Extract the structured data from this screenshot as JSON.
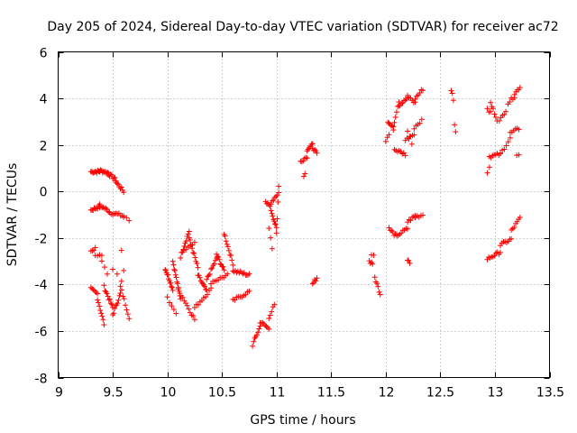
{
  "chart_data": {
    "type": "scatter",
    "title": "Day 205 of 2024, Sidereal Day-to-day VTEC variation (SDTVAR) for receiver ac72",
    "xlabel": "GPS time / hours",
    "ylabel": "SDTVAR / TECUs",
    "xlim": [
      9,
      13.5
    ],
    "ylim": [
      -8,
      6
    ],
    "xticks": [
      9,
      9.5,
      10,
      10.5,
      11,
      11.5,
      12,
      12.5,
      13,
      13.5
    ],
    "xtick_labels": [
      "9",
      "9.5",
      "10",
      "10.5",
      "11",
      "11.5",
      "12",
      "12.5",
      "13",
      "13.5"
    ],
    "yticks": [
      -8,
      -6,
      -4,
      -2,
      0,
      2,
      4,
      6
    ],
    "ytick_labels": [
      "-8",
      "-6",
      "-4",
      "-2",
      "0",
      "2",
      "4",
      "6"
    ],
    "grid": true,
    "marker": "+",
    "marker_color": "#ff0000",
    "series": [
      {
        "name": "SDTVAR",
        "segments": [
          {
            "x0": 9.3,
            "x1": 9.38,
            "y0": 0.85,
            "y1": 0.85,
            "n": 10
          },
          {
            "x0": 9.38,
            "x1": 9.46,
            "y0": 0.9,
            "y1": 0.8,
            "n": 10
          },
          {
            "x0": 9.46,
            "x1": 9.53,
            "y0": 0.75,
            "y1": 0.5,
            "n": 8
          },
          {
            "x0": 9.53,
            "x1": 9.6,
            "y0": 0.4,
            "y1": 0.0,
            "n": 8
          },
          {
            "x0": 9.3,
            "x1": 9.38,
            "y0": -0.8,
            "y1": -0.65,
            "n": 9
          },
          {
            "x0": 9.38,
            "x1": 9.47,
            "y0": -0.6,
            "y1": -0.85,
            "n": 9
          },
          {
            "x0": 9.47,
            "x1": 9.6,
            "y0": -0.9,
            "y1": -1.05,
            "n": 10
          },
          {
            "x0": 9.6,
            "x1": 9.65,
            "y0": -1.1,
            "y1": -1.25,
            "n": 3
          },
          {
            "x0": 9.3,
            "x1": 9.34,
            "y0": -2.55,
            "y1": -2.45,
            "n": 4
          },
          {
            "x0": 9.34,
            "x1": 9.4,
            "y0": -2.7,
            "y1": -2.8,
            "n": 4
          },
          {
            "x0": 9.3,
            "x1": 9.36,
            "y0": -4.2,
            "y1": -4.4,
            "n": 6
          },
          {
            "x0": 9.36,
            "x1": 9.42,
            "y0": -4.6,
            "y1": -5.7,
            "n": 8
          },
          {
            "x0": 9.42,
            "x1": 9.5,
            "y0": -4.1,
            "y1": -5.0,
            "n": 10
          },
          {
            "x0": 9.5,
            "x1": 9.57,
            "y0": -5.3,
            "y1": -4.4,
            "n": 9
          },
          {
            "x0": 9.57,
            "x1": 9.65,
            "y0": -4.1,
            "y1": -5.4,
            "n": 8
          },
          {
            "x0": 9.4,
            "x1": 9.45,
            "y0": -3.0,
            "y1": -3.6,
            "n": 3
          },
          {
            "x0": 9.5,
            "x1": 9.58,
            "y0": -3.3,
            "y1": -3.8,
            "n": 3
          },
          {
            "x0": 9.58,
            "x1": 9.6,
            "y0": -2.5,
            "y1": -3.4,
            "n": 2
          },
          {
            "x0": 9.98,
            "x1": 10.05,
            "y0": -3.3,
            "y1": -4.2,
            "n": 12
          },
          {
            "x0": 10.05,
            "x1": 10.12,
            "y0": -3.0,
            "y1": -4.6,
            "n": 12
          },
          {
            "x0": 10.12,
            "x1": 10.2,
            "y0": -2.8,
            "y1": -1.7,
            "n": 10
          },
          {
            "x0": 10.2,
            "x1": 10.28,
            "y0": -2.0,
            "y1": -3.3,
            "n": 10
          },
          {
            "x0": 10.28,
            "x1": 10.36,
            "y0": -3.6,
            "y1": -4.3,
            "n": 10
          },
          {
            "x0": 10.36,
            "x1": 10.45,
            "y0": -3.8,
            "y1": -2.9,
            "n": 10
          },
          {
            "x0": 10.45,
            "x1": 10.52,
            "y0": -2.7,
            "y1": -3.4,
            "n": 9
          },
          {
            "x0": 10.52,
            "x1": 10.6,
            "y0": -1.8,
            "y1": -3.1,
            "n": 10
          },
          {
            "x0": 10.6,
            "x1": 10.75,
            "y0": -3.4,
            "y1": -3.6,
            "n": 14
          },
          {
            "x0": 10.1,
            "x1": 10.25,
            "y0": -4.2,
            "y1": -5.5,
            "n": 12
          },
          {
            "x0": 10.25,
            "x1": 10.4,
            "y0": -5.0,
            "y1": -4.2,
            "n": 10
          },
          {
            "x0": 10.4,
            "x1": 10.55,
            "y0": -3.9,
            "y1": -3.6,
            "n": 10
          },
          {
            "x0": 10.6,
            "x1": 10.75,
            "y0": -4.7,
            "y1": -4.3,
            "n": 10
          },
          {
            "x0": 10.0,
            "x1": 10.08,
            "y0": -4.6,
            "y1": -5.2,
            "n": 5
          },
          {
            "x0": 10.15,
            "x1": 10.25,
            "y0": -2.6,
            "y1": -2.2,
            "n": 6
          },
          {
            "x0": 10.78,
            "x1": 10.85,
            "y0": -6.6,
            "y1": -5.8,
            "n": 8
          },
          {
            "x0": 10.85,
            "x1": 10.93,
            "y0": -5.6,
            "y1": -5.9,
            "n": 8
          },
          {
            "x0": 10.93,
            "x1": 10.98,
            "y0": -5.4,
            "y1": -4.9,
            "n": 5
          },
          {
            "x0": 10.9,
            "x1": 10.95,
            "y0": -0.5,
            "y1": -0.6,
            "n": 6
          },
          {
            "x0": 10.95,
            "x1": 11.0,
            "y0": -0.8,
            "y1": -1.6,
            "n": 8
          },
          {
            "x0": 10.93,
            "x1": 10.96,
            "y0": -1.6,
            "y1": -2.4,
            "n": 3
          },
          {
            "x0": 10.96,
            "x1": 11.02,
            "y0": -0.4,
            "y1": -0.05,
            "n": 6
          },
          {
            "x0": 11.0,
            "x1": 11.02,
            "y0": -1.8,
            "y1": 0.2,
            "n": 4
          },
          {
            "x0": 11.22,
            "x1": 11.28,
            "y0": 1.3,
            "y1": 1.5,
            "n": 6
          },
          {
            "x0": 11.26,
            "x1": 11.25,
            "y0": 0.75,
            "y1": 0.7,
            "n": 2
          },
          {
            "x0": 11.28,
            "x1": 11.33,
            "y0": 1.8,
            "y1": 2.0,
            "n": 6
          },
          {
            "x0": 11.33,
            "x1": 11.37,
            "y0": 1.9,
            "y1": 1.6,
            "n": 5
          },
          {
            "x0": 11.33,
            "x1": 11.37,
            "y0": -4.0,
            "y1": -3.7,
            "n": 5
          },
          {
            "x0": 11.85,
            "x1": 11.88,
            "y0": -3.0,
            "y1": -3.1,
            "n": 4
          },
          {
            "x0": 11.87,
            "x1": 11.89,
            "y0": -2.7,
            "y1": -2.8,
            "n": 2
          },
          {
            "x0": 11.9,
            "x1": 11.95,
            "y0": -3.7,
            "y1": -4.4,
            "n": 6
          },
          {
            "x0": 12.0,
            "x1": 12.03,
            "y0": 2.2,
            "y1": 2.5,
            "n": 3
          },
          {
            "x0": 12.02,
            "x1": 12.07,
            "y0": 3.0,
            "y1": 2.7,
            "n": 6
          },
          {
            "x0": 12.07,
            "x1": 12.12,
            "y0": 2.8,
            "y1": 3.9,
            "n": 6
          },
          {
            "x0": 12.12,
            "x1": 12.2,
            "y0": 3.7,
            "y1": 4.0,
            "n": 8
          },
          {
            "x0": 12.2,
            "x1": 12.27,
            "y0": 4.1,
            "y1": 3.8,
            "n": 6
          },
          {
            "x0": 12.27,
            "x1": 12.34,
            "y0": 4.0,
            "y1": 4.4,
            "n": 6
          },
          {
            "x0": 12.08,
            "x1": 12.18,
            "y0": 1.8,
            "y1": 1.6,
            "n": 8
          },
          {
            "x0": 12.18,
            "x1": 12.26,
            "y0": 2.2,
            "y1": 2.5,
            "n": 6
          },
          {
            "x0": 12.26,
            "x1": 12.33,
            "y0": 2.7,
            "y1": 3.1,
            "n": 5
          },
          {
            "x0": 12.2,
            "x1": 12.24,
            "y0": 2.6,
            "y1": 2.1,
            "n": 3
          },
          {
            "x0": 12.03,
            "x1": 12.1,
            "y0": -1.6,
            "y1": -1.95,
            "n": 7
          },
          {
            "x0": 12.1,
            "x1": 12.2,
            "y0": -1.9,
            "y1": -1.6,
            "n": 8
          },
          {
            "x0": 12.2,
            "x1": 12.27,
            "y0": -1.3,
            "y1": -1.05,
            "n": 6
          },
          {
            "x0": 12.27,
            "x1": 12.34,
            "y0": -1.1,
            "y1": -1.0,
            "n": 5
          },
          {
            "x0": 12.2,
            "x1": 12.22,
            "y0": -2.9,
            "y1": -3.05,
            "n": 3
          },
          {
            "x0": 12.6,
            "x1": 12.62,
            "y0": 4.4,
            "y1": 3.9,
            "n": 3
          },
          {
            "x0": 12.63,
            "x1": 12.64,
            "y0": 2.9,
            "y1": 2.6,
            "n": 2
          },
          {
            "x0": 12.93,
            "x1": 12.96,
            "y0": 3.5,
            "y1": 3.4,
            "n": 3
          },
          {
            "x0": 12.96,
            "x1": 13.02,
            "y0": 3.8,
            "y1": 3.1,
            "n": 6
          },
          {
            "x0": 13.04,
            "x1": 13.1,
            "y0": 3.0,
            "y1": 3.5,
            "n": 5
          },
          {
            "x0": 13.12,
            "x1": 13.18,
            "y0": 3.8,
            "y1": 4.1,
            "n": 5
          },
          {
            "x0": 13.18,
            "x1": 13.23,
            "y0": 4.2,
            "y1": 4.5,
            "n": 5
          },
          {
            "x0": 12.93,
            "x1": 12.95,
            "y0": 0.8,
            "y1": 1.1,
            "n": 2
          },
          {
            "x0": 12.95,
            "x1": 13.05,
            "y0": 1.5,
            "y1": 1.6,
            "n": 8
          },
          {
            "x0": 13.05,
            "x1": 13.14,
            "y0": 1.6,
            "y1": 2.3,
            "n": 6
          },
          {
            "x0": 13.14,
            "x1": 13.22,
            "y0": 2.5,
            "y1": 2.7,
            "n": 6
          },
          {
            "x0": 13.2,
            "x1": 13.22,
            "y0": 1.6,
            "y1": 1.55,
            "n": 2
          },
          {
            "x0": 12.93,
            "x1": 13.05,
            "y0": -2.9,
            "y1": -2.6,
            "n": 10
          },
          {
            "x0": 13.05,
            "x1": 13.15,
            "y0": -2.3,
            "y1": -2.05,
            "n": 8
          },
          {
            "x0": 13.15,
            "x1": 13.23,
            "y0": -1.7,
            "y1": -1.15,
            "n": 7
          }
        ]
      }
    ]
  }
}
